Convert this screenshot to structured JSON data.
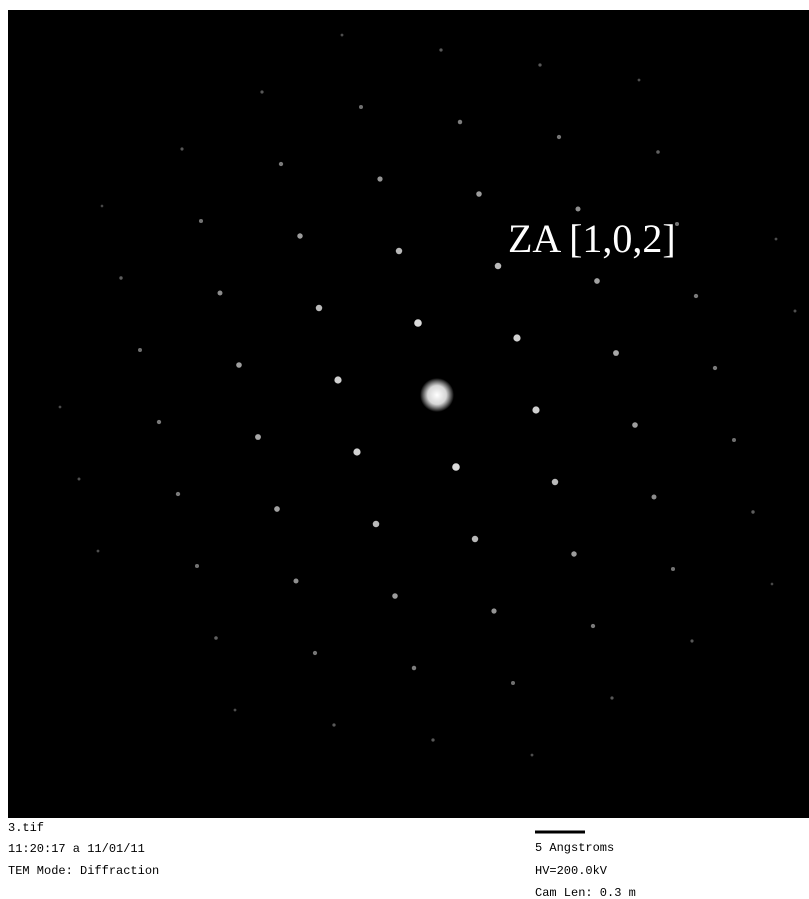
{
  "image": {
    "label": "ZA [1,0,2]"
  },
  "footer": {
    "left": [
      "3.tif",
      "11:20:17 a 11/01/11",
      "TEM Mode: Diffraction"
    ],
    "right": {
      "scale_bar": "5 Angstroms",
      "lines": [
        "HV=200.0kV",
        "Cam Len: 0.3 m"
      ]
    }
  }
}
